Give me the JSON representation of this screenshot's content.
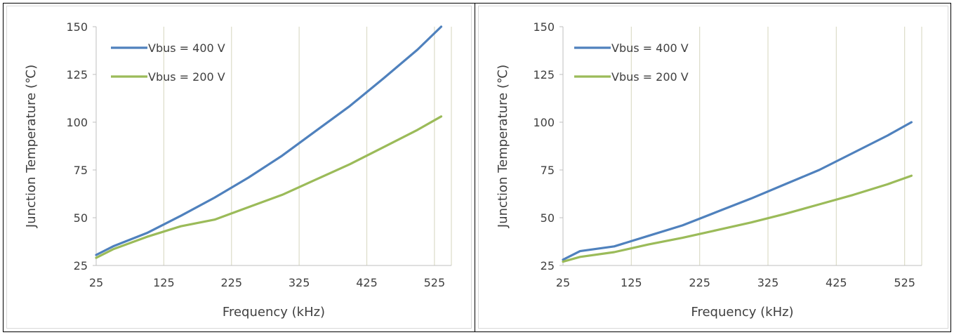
{
  "chart_data": [
    {
      "type": "line",
      "xlabel": "Frequency (kHz)",
      "ylabel": "Junction Temperature (℃)",
      "xlim": [
        25,
        550
      ],
      "ylim": [
        25,
        150
      ],
      "xticks": [
        "25",
        "125",
        "225",
        "325",
        "425",
        "525"
      ],
      "yticks": [
        "25",
        "50",
        "75",
        "100",
        "125",
        "150"
      ],
      "grid": "vertical",
      "legend": "top-left",
      "series": [
        {
          "name": "Vbus = 400 V",
          "color": "#4F81BD",
          "x": [
            25,
            50,
            100,
            150,
            200,
            250,
            300,
            350,
            400,
            450,
            500,
            535
          ],
          "y": [
            30.5,
            35,
            42,
            51,
            60.5,
            71,
            82.5,
            95.5,
            108.5,
            123,
            138,
            150
          ]
        },
        {
          "name": "Vbus = 200 V",
          "color": "#9BBB59",
          "x": [
            25,
            50,
            100,
            150,
            200,
            250,
            300,
            350,
            400,
            450,
            500,
            535
          ],
          "y": [
            29,
            33.5,
            40,
            45.5,
            49,
            55.5,
            62,
            70,
            78,
            87,
            96,
            103
          ]
        }
      ]
    },
    {
      "type": "line",
      "xlabel": "Frequency (kHz)",
      "ylabel": "Junction Temperature (℃)",
      "xlim": [
        25,
        550
      ],
      "ylim": [
        25,
        150
      ],
      "xticks": [
        "25",
        "125",
        "225",
        "325",
        "425",
        "525"
      ],
      "yticks": [
        "25",
        "50",
        "75",
        "100",
        "125",
        "150"
      ],
      "grid": "vertical",
      "legend": "top-left",
      "series": [
        {
          "name": "Vbus = 400 V",
          "color": "#4F81BD",
          "x": [
            25,
            50,
            100,
            150,
            200,
            250,
            300,
            350,
            400,
            450,
            500,
            535
          ],
          "y": [
            28,
            32.5,
            35,
            40.5,
            46,
            53,
            60,
            67.5,
            75,
            84,
            93,
            100
          ]
        },
        {
          "name": "Vbus = 200 V",
          "color": "#9BBB59",
          "x": [
            25,
            50,
            100,
            150,
            200,
            250,
            300,
            350,
            400,
            450,
            500,
            535
          ],
          "y": [
            27,
            29.5,
            32,
            36,
            39.5,
            43.5,
            47.5,
            52,
            57,
            62,
            67.5,
            72
          ]
        }
      ]
    }
  ]
}
